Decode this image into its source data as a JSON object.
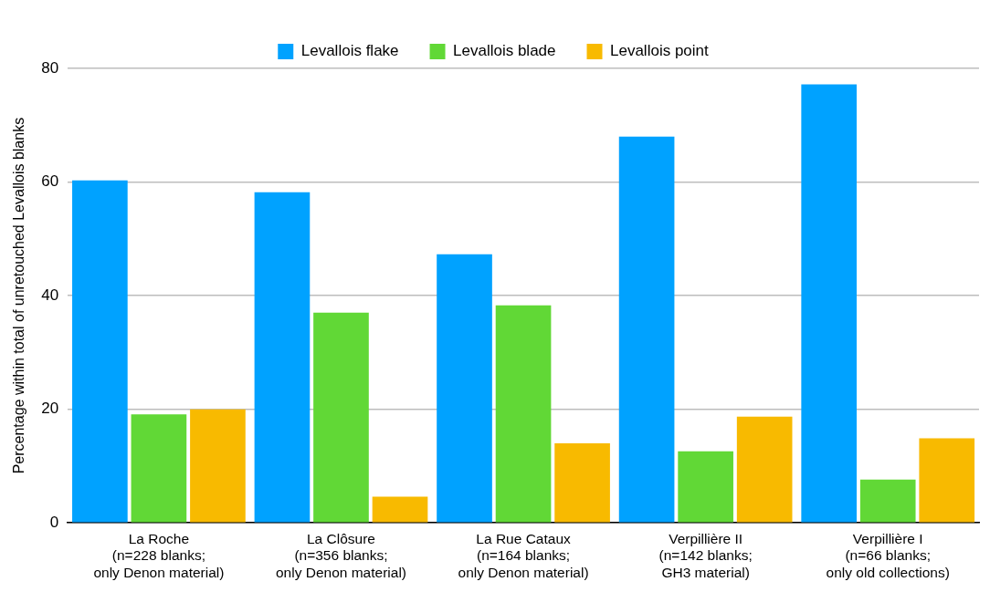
{
  "chart_data": {
    "type": "bar",
    "ylabel": "Percentage within total of unretouched Levallois blanks",
    "categories": [
      "La Roche\n(n=228 blanks;\nonly Denon material)",
      "La Clôsure\n(n=356 blanks;\nonly Denon material)",
      "La Rue Cataux\n(n=164 blanks;\nonly Denon material)",
      "Verpillière II\n(n=142 blanks;\nGH3 material)",
      "Verpillière I\n(n=66 blanks;\nonly old collections)"
    ],
    "series": [
      {
        "name": "Levallois flake",
        "color": "#00a2ff",
        "values": [
          60.3,
          58.2,
          47.3,
          68.0,
          77.2
        ]
      },
      {
        "name": "Levallois blade",
        "color": "#61d836",
        "values": [
          19.1,
          37.0,
          38.3,
          12.6,
          7.6
        ]
      },
      {
        "name": "Levallois point",
        "color": "#f8ba00",
        "values": [
          20.0,
          4.6,
          14.0,
          18.7,
          14.9
        ]
      }
    ],
    "ylim": [
      0,
      80
    ],
    "yticks": [
      0,
      20,
      40,
      60,
      80
    ],
    "grid": "y",
    "legend": "top"
  }
}
